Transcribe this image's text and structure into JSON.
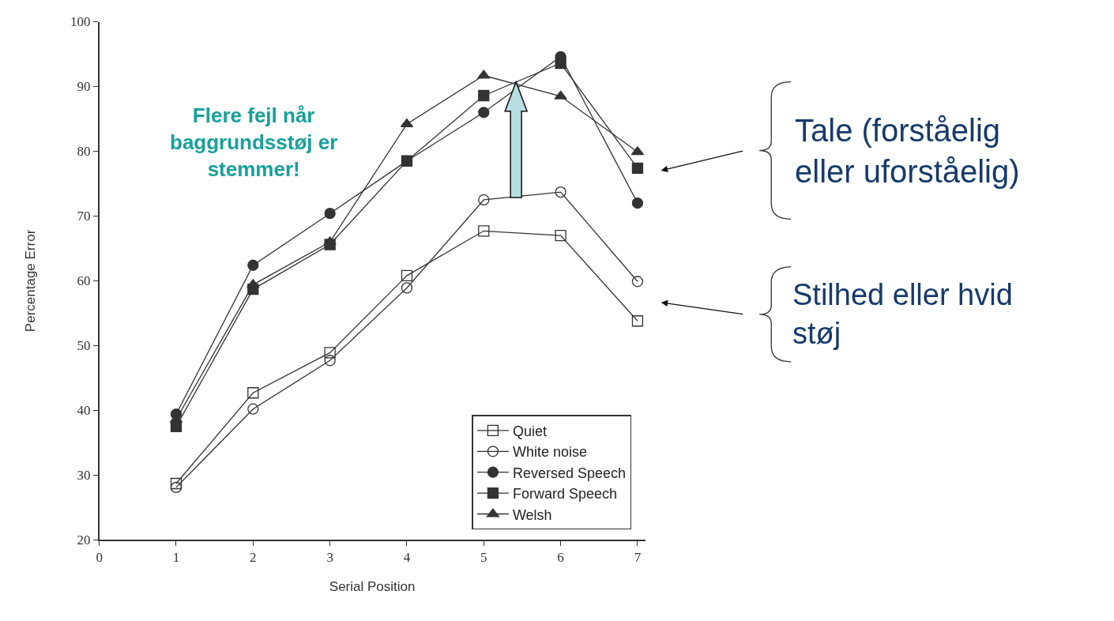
{
  "chart_data": {
    "type": "line",
    "xlabel": "Serial Position",
    "ylabel": "Percentage Error",
    "x": [
      1,
      2,
      3,
      4,
      5,
      6,
      7
    ],
    "series": [
      {
        "name": "Quiet",
        "color": "#333333",
        "marker": "square-open",
        "values": [
          28.7,
          42.7,
          48.9,
          60.8,
          67.7,
          67.0,
          53.8
        ]
      },
      {
        "name": "White noise",
        "color": "#333333",
        "marker": "circle-open",
        "values": [
          28.1,
          40.2,
          47.7,
          58.9,
          72.5,
          73.7,
          59.9
        ]
      },
      {
        "name": "Reversed Speech",
        "color": "#333333",
        "marker": "circle",
        "values": [
          39.4,
          62.4,
          70.4,
          78.5,
          86.0,
          94.6,
          72.0
        ]
      },
      {
        "name": "Forward Speech",
        "color": "#333333",
        "marker": "square",
        "values": [
          37.5,
          58.7,
          65.6,
          78.5,
          88.6,
          93.6,
          77.4
        ]
      },
      {
        "name": "Welsh",
        "color": "#333333",
        "marker": "triangle",
        "values": [
          38.6,
          59.4,
          66.0,
          84.2,
          91.7,
          88.5,
          79.9
        ]
      }
    ],
    "xlim": [
      0,
      7.1
    ],
    "xticks": [
      0,
      1,
      2,
      3,
      4,
      5,
      6,
      7
    ],
    "ylim": [
      20,
      100
    ],
    "yticks": [
      20,
      30,
      40,
      50,
      60,
      70,
      80,
      90,
      100
    ],
    "legend": "bottom right",
    "annotations": [
      "Flere fejl når baggrundsstøj er stemmer!",
      "Tale (forståelig eller uforståelig)",
      "Stilhed eller hvid støj"
    ]
  }
}
